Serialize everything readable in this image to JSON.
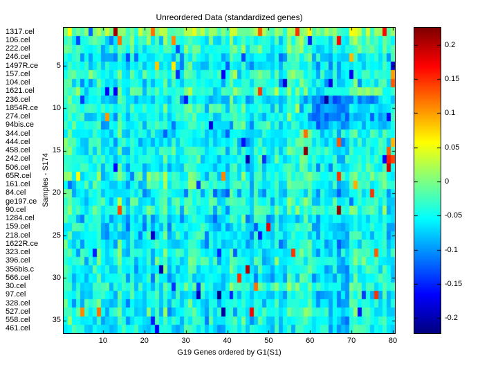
{
  "figure": {
    "background": "#ffffff",
    "axis_color": "#000000"
  },
  "chart_data": {
    "type": "heatmap",
    "title": "Unreordered Data (standardized genes)",
    "xlabel": "G19 Genes ordered by G1(S1)",
    "ylabel": "Samples - S174",
    "n_rows": 36,
    "n_cols": 80,
    "row_labels": [
      "1317.cel",
      "106.cel",
      "222.cel",
      "246.cel",
      "1497R.ce",
      "157.cel",
      "104.cel",
      "1621.cel",
      "236.cel",
      "1854R.ce",
      "274.cel",
      "94bis.ce",
      "344.cel",
      "444.cel",
      "458.cel",
      "242.cel",
      "506.cel",
      "65R.cel",
      "161.cel",
      "84.cel",
      "ge197.ce",
      "90.cel",
      "1284.cel",
      "159.cel",
      "218.cel",
      "1622R.ce",
      "323.cel",
      "396.cel",
      "356bis.c",
      "566.cel",
      "30.cel",
      "97.cel",
      "328.cel",
      "527.cel",
      "558.cel",
      "461.cel"
    ],
    "x_ticks": [
      10,
      20,
      30,
      40,
      50,
      60,
      70,
      80
    ],
    "y_ticks": [
      5,
      10,
      15,
      20,
      25,
      30,
      35
    ],
    "colormap": "jet",
    "color_range_bottom": -0.222,
    "color_range_top": 0.225,
    "colorbar_ticks": [
      "0.2",
      "0.15",
      "0.1",
      "0.05",
      "0",
      "-0.05",
      "-0.1",
      "-0.15",
      "-0.2"
    ],
    "colorbar_tick_values": [
      0.2,
      0.15,
      0.1,
      0.05,
      0,
      -0.05,
      -0.1,
      -0.15,
      -0.2
    ],
    "legend_position": "right-colorbar",
    "grid": false,
    "pattern": {
      "seed": 17436,
      "base_mean": -0.048,
      "col_band_amp": 0.025,
      "row_band_amp": 0.015,
      "noise_amp": 0.05,
      "warm_outlier_prob": 0.006,
      "cold_outlier_prob": 0.016,
      "row_bias": {
        "1": 0.065,
        "2": 0.02
      },
      "dark_regions": [
        {
          "r1": 9,
          "r2": 12,
          "c1": 58,
          "c2": 78,
          "bias": -0.045
        }
      ],
      "notable_cells": [
        {
          "r": 1,
          "c": 13,
          "v": 0.21
        },
        {
          "r": 1,
          "c": 22,
          "v": 0.12
        },
        {
          "r": 1,
          "c": 48,
          "v": 0.13
        },
        {
          "r": 2,
          "c": 14,
          "v": 0.12
        },
        {
          "r": 2,
          "c": 27,
          "v": 0.11
        },
        {
          "r": 5,
          "c": 80,
          "v": -0.19
        },
        {
          "r": 6,
          "c": 80,
          "v": 0.1
        },
        {
          "r": 7,
          "c": 80,
          "v": 0.13
        },
        {
          "r": 13,
          "c": 59,
          "v": 0.12
        },
        {
          "r": 14,
          "c": 67,
          "v": 0.13
        },
        {
          "r": 14,
          "c": 80,
          "v": 0.09
        },
        {
          "r": 15,
          "c": 59,
          "v": 0.22
        },
        {
          "r": 15,
          "c": 79,
          "v": 0.13
        },
        {
          "r": 16,
          "c": 79,
          "v": 0.16
        },
        {
          "r": 16,
          "c": 80,
          "v": 0.14
        },
        {
          "r": 17,
          "c": 79,
          "v": 0.19
        },
        {
          "r": 22,
          "c": 67,
          "v": 0.215
        },
        {
          "r": 29,
          "c": 45,
          "v": 0.2
        },
        {
          "r": 31,
          "c": 47,
          "v": 0.12
        },
        {
          "r": 34,
          "c": 5,
          "v": 0.11
        },
        {
          "r": 34,
          "c": 9,
          "v": 0.12
        }
      ]
    }
  }
}
